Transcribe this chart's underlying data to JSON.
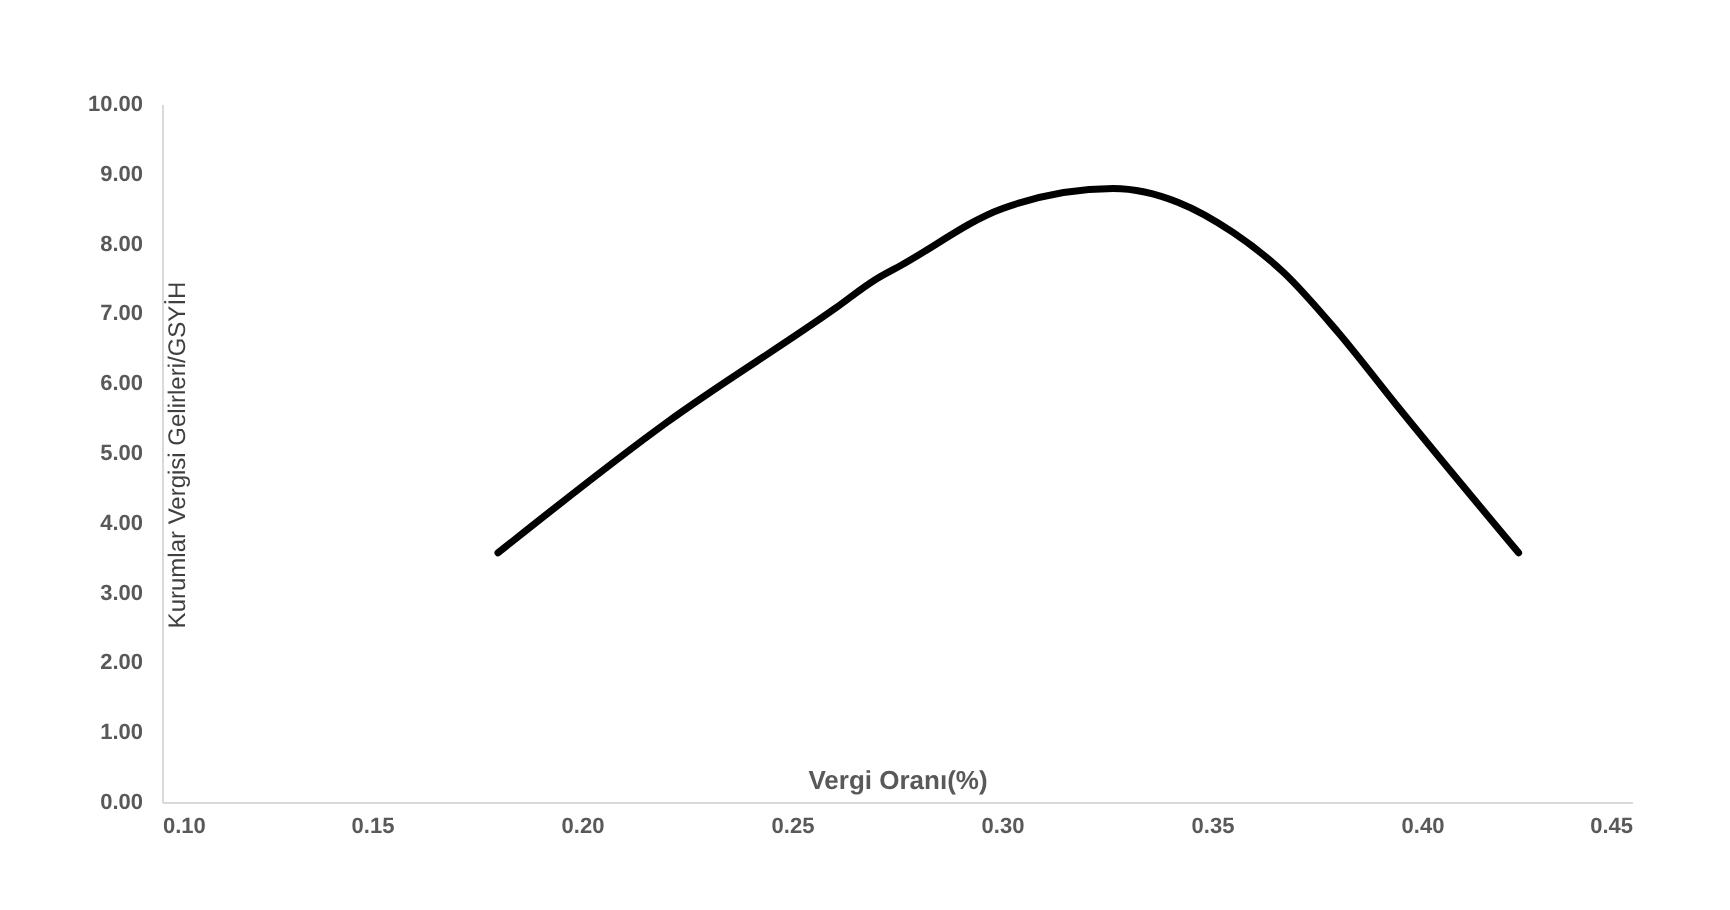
{
  "chart_data": {
    "type": "line",
    "xlabel": "Vergi Oranı(%)",
    "ylabel": "Kurumlar Vergisi Gelirleri/GSYİH",
    "x": [
      0.18,
      0.22,
      0.26,
      0.27,
      0.276,
      0.3,
      0.3265,
      0.342,
      0.355,
      0.367,
      0.38,
      0.394,
      0.423
    ],
    "series": [
      {
        "color": "#000000",
        "values": [
          3.57,
          5.43,
          7.06,
          7.49,
          7.69,
          8.5,
          8.79,
          8.59,
          8.16,
          7.59,
          6.73,
          5.68,
          3.57
        ]
      }
    ],
    "xlim": [
      0.1,
      0.45
    ],
    "xticks": [
      {
        "value": 0.1,
        "label": "0.10"
      },
      {
        "value": 0.15,
        "label": "0.15"
      },
      {
        "value": 0.2,
        "label": "0.20"
      },
      {
        "value": 0.25,
        "label": "0.25"
      },
      {
        "value": 0.3,
        "label": "0.30"
      },
      {
        "value": 0.35,
        "label": "0.35"
      },
      {
        "value": 0.4,
        "label": "0.40"
      },
      {
        "value": 0.45,
        "label": "0.45"
      }
    ],
    "ylim": [
      0,
      10
    ],
    "yticks": [
      {
        "value": 0,
        "label": "0.00"
      },
      {
        "value": 1,
        "label": "1.00"
      },
      {
        "value": 2,
        "label": "2.00"
      },
      {
        "value": 3,
        "label": "3.00"
      },
      {
        "value": 4,
        "label": "4.00"
      },
      {
        "value": 5,
        "label": "5.00"
      },
      {
        "value": 6,
        "label": "6.00"
      },
      {
        "value": 7,
        "label": "7.00"
      },
      {
        "value": 8,
        "label": "8.00"
      },
      {
        "value": 9,
        "label": "9.00"
      },
      {
        "value": 10,
        "label": "10.00"
      }
    ],
    "grid": false,
    "legend": false
  }
}
